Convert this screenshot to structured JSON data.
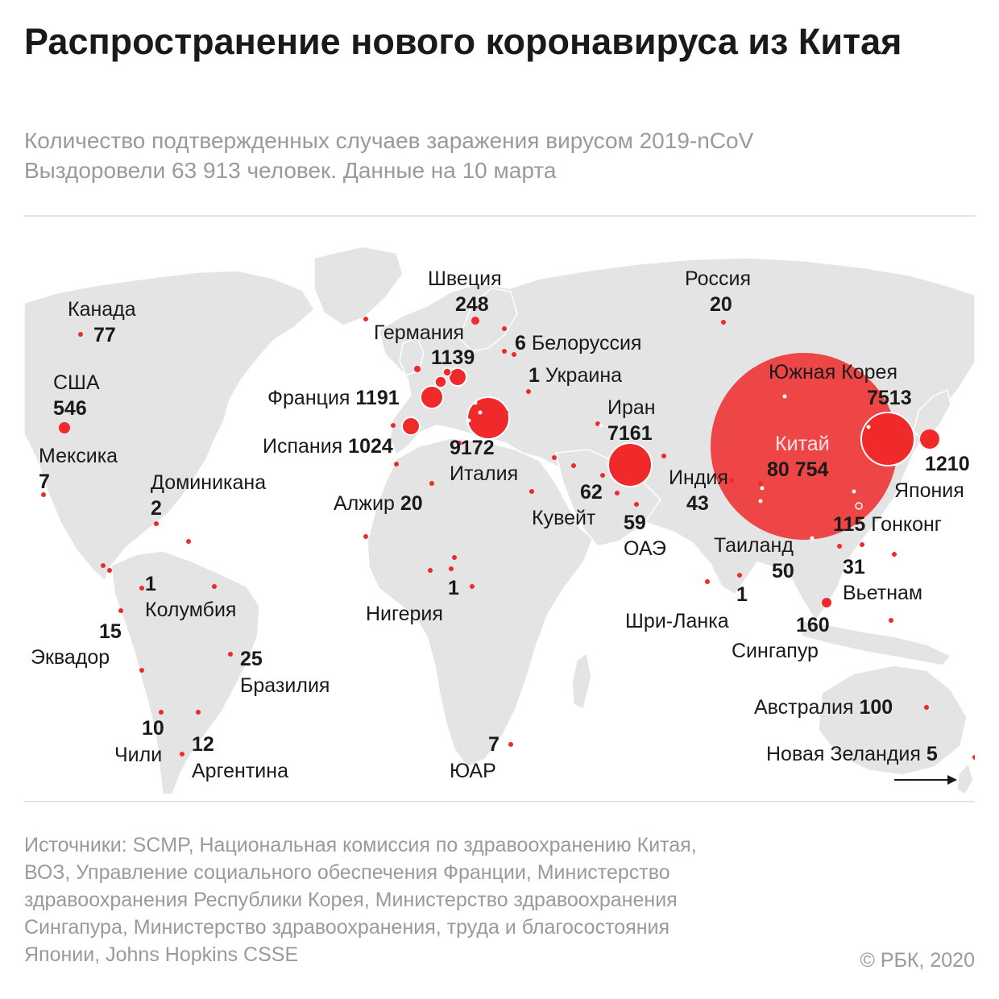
{
  "header": {
    "title": "Распространение нового коронавируса из Китая",
    "subtitle_line1": "Количество подтвержденных случаев заражения вирусом 2019-nCoV",
    "subtitle_line2": "Выздоровели 63 913 человек. Данные на 10 марта"
  },
  "colors": {
    "bubble": "#f0292a",
    "land": "#e4e4e4",
    "borders": "#ffffff",
    "text": "#1a1a1a",
    "muted": "#9a9a9a"
  },
  "labels": {
    "canada": {
      "name": "Канада",
      "value": "77"
    },
    "usa": {
      "name": "США",
      "value": "546"
    },
    "mexico": {
      "name": "Мексика",
      "value": "7"
    },
    "dominicana": {
      "name": "Доминикана",
      "value": "2"
    },
    "colombia": {
      "name": "Колумбия",
      "value": "1"
    },
    "ecuador": {
      "name": "Эквадор",
      "value": "15"
    },
    "brazil": {
      "name": "Бразилия",
      "value": "25"
    },
    "chile": {
      "name": "Чили",
      "value": "10"
    },
    "argentina": {
      "name": "Аргентина",
      "value": "12"
    },
    "sweden": {
      "name": "Швеция",
      "value": "248"
    },
    "germany": {
      "name": "Германия",
      "value": "1139"
    },
    "belarus": {
      "name": "Белоруссия",
      "value": "6"
    },
    "ukraine": {
      "name": "Украина",
      "value": "1"
    },
    "france": {
      "name": "Франция",
      "value": "1191"
    },
    "spain": {
      "name": "Испания",
      "value": "1024"
    },
    "italy": {
      "name": "Италия",
      "value": "9172"
    },
    "algeria": {
      "name": "Алжир",
      "value": "20"
    },
    "nigeria": {
      "name": "Нигерия",
      "value": "1"
    },
    "sar": {
      "name": "ЮАР",
      "value": "7"
    },
    "kuwait": {
      "name": "Кувейт",
      "value": "62"
    },
    "uae": {
      "name": "ОАЭ",
      "value": "59"
    },
    "iran": {
      "name": "Иран",
      "value": "7161"
    },
    "russia": {
      "name": "Россия",
      "value": "20"
    },
    "india": {
      "name": "Индия",
      "value": "43"
    },
    "china": {
      "name": "Китай",
      "value": "80 754"
    },
    "korea": {
      "name": "Южная Корея",
      "value": "7513"
    },
    "japan": {
      "name": "Япония",
      "value": "1210"
    },
    "hongkong": {
      "name": "Гонконг",
      "value": "115"
    },
    "thailand": {
      "name": "Таиланд",
      "value": "50"
    },
    "vietnam": {
      "name": "Вьетнам",
      "value": "31"
    },
    "srilanka": {
      "name": "Шри-Ланка",
      "value": "1"
    },
    "singapore": {
      "name": "Сингапур",
      "value": "160"
    },
    "australia": {
      "name": "Австралия",
      "value": "100"
    },
    "newzealand": {
      "name": "Новая Зеландия",
      "value": "5"
    }
  },
  "footer": {
    "sources_line1": "Источники: SCMP, Национальная комиссия по здравоохранению Китая,",
    "sources_line2": "ВОЗ, Управление социального обеспечения Франции, Министерство",
    "sources_line3": "здравоохранения Республики Корея, Министерство здравоохранения",
    "sources_line4": "Сингапура, Министерство здравоохранения, труда и благосостояния",
    "sources_line5": "Японии, Johns Hopkins CSSE",
    "copyright": "© РБК, 2020"
  }
}
